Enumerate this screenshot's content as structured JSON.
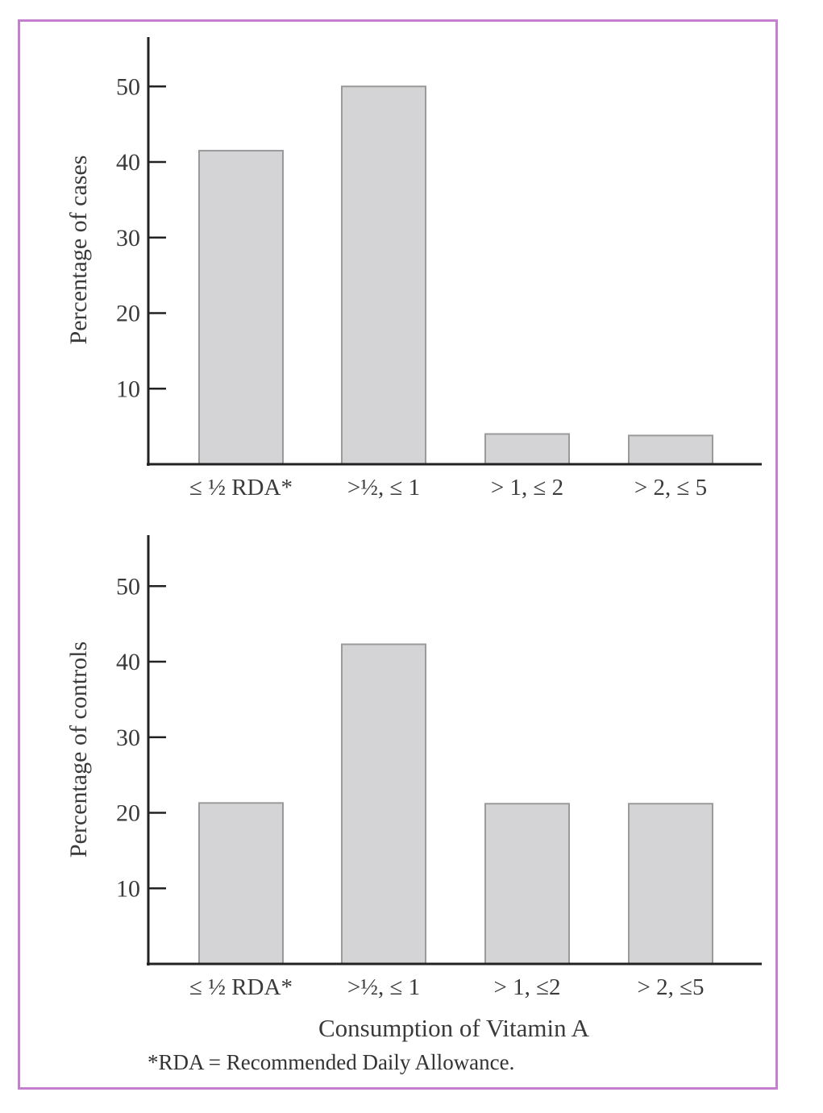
{
  "chart_data": [
    {
      "type": "bar",
      "ylabel": "Percentage of cases",
      "xlabel": "",
      "categories": [
        "≤ ½ RDA*",
        ">½,  ≤ 1",
        "> 1, ≤ 2",
        "> 2, ≤ 5"
      ],
      "values": [
        41.5,
        50,
        4,
        3.8
      ],
      "yticks": [
        10,
        20,
        30,
        40,
        50
      ],
      "ylim": [
        0,
        56
      ],
      "grid": false,
      "bar_color": "#d4d4d6"
    },
    {
      "type": "bar",
      "ylabel": "Percentage of controls",
      "xlabel": "Consumption of Vitamin A",
      "categories": [
        "≤ ½ RDA*",
        ">½,  ≤ 1",
        "> 1, ≤2",
        "> 2, ≤5"
      ],
      "values": [
        21.3,
        42.3,
        21.2,
        21.2
      ],
      "yticks": [
        10,
        20,
        30,
        40,
        50
      ],
      "ylim": [
        0,
        56
      ],
      "grid": false,
      "bar_color": "#d4d4d6"
    }
  ],
  "footnote": "*RDA = Recommended Daily Allowance.",
  "colors": {
    "frame": "#c47fcf",
    "bar": "#d4d4d6",
    "bar_edge": "#9a9a9a",
    "axis": "#222222"
  }
}
